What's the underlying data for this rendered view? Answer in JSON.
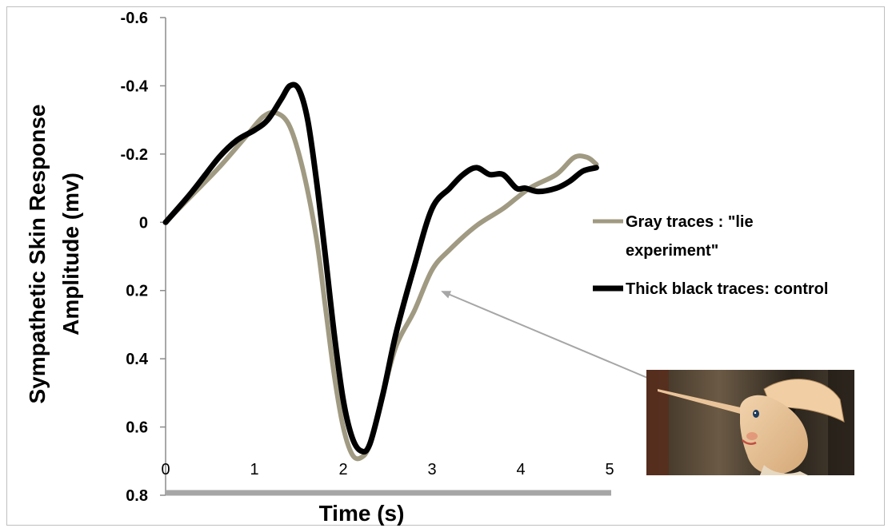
{
  "chart_data": {
    "type": "line",
    "xlabel": "Time (s)",
    "ylabel_line1": "Sympathetic Skin Response",
    "ylabel_line2": "Amplitude (mv)",
    "xlim": [
      0,
      5
    ],
    "ylim": [
      -0.6,
      0.8
    ],
    "y_axis_inverted": true,
    "x_ticks": [
      "0",
      "1",
      "2",
      "3",
      "4",
      "5"
    ],
    "y_ticks": [
      "-0.6",
      "-0.4",
      "-0.2",
      "0",
      "0.2",
      "0.4",
      "0.6",
      "0.8"
    ],
    "grid": false,
    "legend": {
      "placement": "right",
      "entries": [
        {
          "line1": "Gray traces : \"lie",
          "line2": "experiment\"",
          "color": "#a09a82"
        },
        {
          "line1": "Thick black traces: control",
          "line2": "",
          "color": "#000000"
        }
      ]
    },
    "series": [
      {
        "color": "#a09a82",
        "x": [
          0,
          0.3,
          0.6,
          0.9,
          1.1,
          1.25,
          1.4,
          1.55,
          1.7,
          1.8,
          1.9,
          2.0,
          2.1,
          2.2,
          2.3,
          2.45,
          2.6,
          2.8,
          3.0,
          3.2,
          3.5,
          3.8,
          4.1,
          4.4,
          4.6,
          4.75,
          4.85
        ],
        "y": [
          0,
          -0.08,
          -0.16,
          -0.25,
          -0.31,
          -0.32,
          -0.28,
          -0.15,
          0.05,
          0.25,
          0.45,
          0.6,
          0.68,
          0.69,
          0.65,
          0.5,
          0.36,
          0.26,
          0.14,
          0.08,
          0.01,
          -0.04,
          -0.1,
          -0.14,
          -0.19,
          -0.19,
          -0.17
        ]
      },
      {
        "color": "#000000",
        "x": [
          0,
          0.3,
          0.6,
          0.8,
          1.0,
          1.15,
          1.3,
          1.4,
          1.5,
          1.6,
          1.7,
          1.8,
          1.9,
          2.0,
          2.1,
          2.2,
          2.3,
          2.45,
          2.6,
          2.8,
          3.0,
          3.2,
          3.35,
          3.5,
          3.65,
          3.8,
          3.95,
          4.05,
          4.2,
          4.4,
          4.55,
          4.7,
          4.85
        ],
        "y": [
          0,
          -0.09,
          -0.19,
          -0.24,
          -0.27,
          -0.3,
          -0.36,
          -0.4,
          -0.39,
          -0.3,
          -0.12,
          0.1,
          0.33,
          0.52,
          0.63,
          0.67,
          0.65,
          0.5,
          0.32,
          0.13,
          -0.04,
          -0.1,
          -0.14,
          -0.16,
          -0.14,
          -0.14,
          -0.1,
          -0.1,
          -0.09,
          -0.1,
          -0.12,
          -0.15,
          -0.16
        ]
      }
    ]
  }
}
